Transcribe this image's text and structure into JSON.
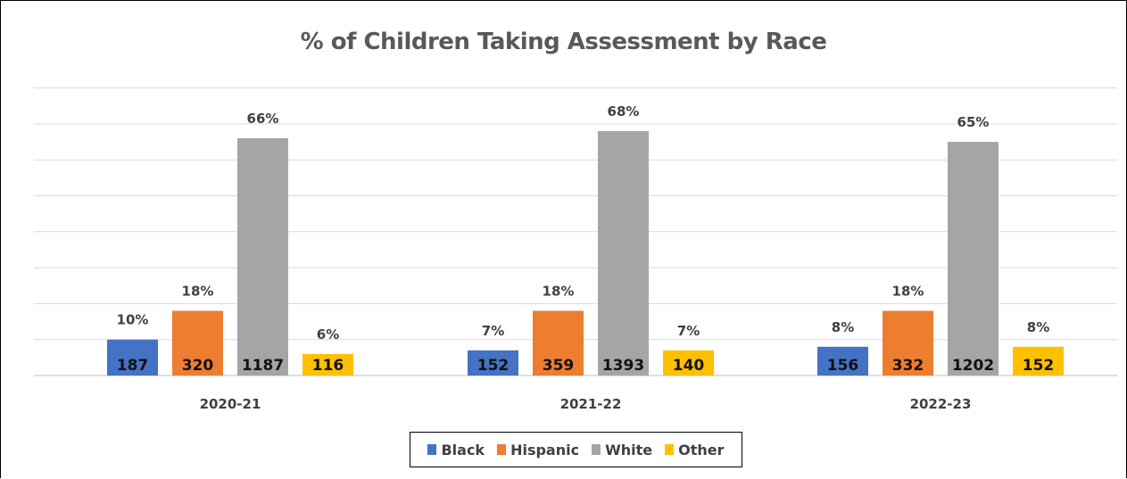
{
  "chart_data": {
    "type": "bar",
    "title": "% of Children Taking Assessment by Race",
    "categories": [
      "2020-21",
      "2021-22",
      "2022-23"
    ],
    "series": [
      {
        "name": "Black",
        "color": "#4472C4",
        "percent_labels": [
          "10%",
          "7%",
          "8%"
        ],
        "values": [
          10,
          7,
          8
        ],
        "counts": [
          "187",
          "152",
          "156"
        ]
      },
      {
        "name": "Hispanic",
        "color": "#ED7D31",
        "percent_labels": [
          "18%",
          "18%",
          "18%"
        ],
        "values": [
          18,
          18,
          18
        ],
        "counts": [
          "320",
          "359",
          "332"
        ]
      },
      {
        "name": "White",
        "color": "#A5A5A5",
        "percent_labels": [
          "66%",
          "68%",
          "65%"
        ],
        "values": [
          66,
          68,
          65
        ],
        "counts": [
          "1187",
          "1393",
          "1202"
        ]
      },
      {
        "name": "Other",
        "color": "#FFC000",
        "percent_labels": [
          "6%",
          "7%",
          "8%"
        ],
        "values": [
          6,
          7,
          8
        ],
        "counts": [
          "116",
          "140",
          "152"
        ]
      }
    ],
    "xlabel": "",
    "ylabel": "",
    "ylim": [
      0,
      80
    ],
    "grid": true,
    "legend_position": "bottom"
  }
}
